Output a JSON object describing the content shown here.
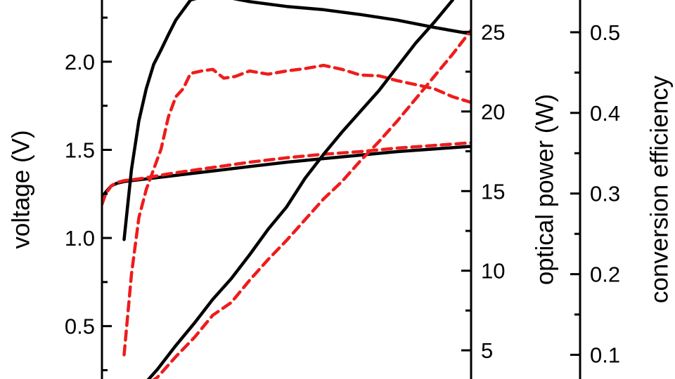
{
  "chart_data": {
    "type": "line",
    "title": "",
    "x_axis": {
      "visible": false
    },
    "axes": {
      "voltage": {
        "label": "voltage (V)",
        "ylim": [
          0.2,
          2.35
        ],
        "ticks": [
          0.5,
          1.0,
          1.5,
          2.0
        ],
        "tick_labels": [
          "0.5",
          "1.0",
          "1.5",
          "2.0"
        ]
      },
      "optical_power": {
        "label": "optical power (W)",
        "ylim": [
          3.2,
          27
        ],
        "ticks": [
          5,
          10,
          15,
          20,
          25
        ],
        "tick_labels": [
          "5",
          "10",
          "15",
          "20",
          "25"
        ]
      },
      "conversion_efficiency": {
        "label": "conversion efficiency",
        "ylim": [
          0.07,
          0.54
        ],
        "ticks": [
          0.1,
          0.2,
          0.3,
          0.4,
          0.5
        ],
        "tick_labels": [
          "0.1",
          "0.2",
          "0.3",
          "0.4",
          "0.5"
        ]
      }
    },
    "xlim": [
      0,
      100
    ],
    "series": [
      {
        "axis": "voltage",
        "color": "#000000",
        "style": "solid",
        "x": [
          0,
          1,
          2.5,
          4,
          6,
          8,
          10,
          20,
          30,
          40,
          50,
          60,
          70,
          80,
          90,
          100
        ],
        "y": [
          1.23,
          1.26,
          1.295,
          1.31,
          1.32,
          1.325,
          1.33,
          1.355,
          1.38,
          1.405,
          1.43,
          1.45,
          1.47,
          1.49,
          1.505,
          1.52
        ]
      },
      {
        "axis": "voltage",
        "color": "#ee1c1c",
        "style": "dashed",
        "x": [
          0,
          1,
          2.5,
          4,
          6,
          8,
          10,
          20,
          30,
          40,
          50,
          60,
          70,
          80,
          90,
          100
        ],
        "y": [
          1.19,
          1.25,
          1.295,
          1.315,
          1.325,
          1.33,
          1.335,
          1.37,
          1.4,
          1.43,
          1.455,
          1.475,
          1.49,
          1.51,
          1.525,
          1.54
        ]
      },
      {
        "axis": "conversion_efficiency",
        "color": "#000000",
        "style": "solid",
        "x": [
          6,
          8,
          10,
          12,
          14,
          16,
          18,
          20,
          24,
          28,
          32,
          40,
          50,
          60,
          70,
          80,
          90,
          100
        ],
        "y": [
          0.243,
          0.33,
          0.39,
          0.43,
          0.46,
          0.478,
          0.497,
          0.515,
          0.54,
          0.545,
          0.545,
          0.538,
          0.532,
          0.528,
          0.522,
          0.515,
          0.506,
          0.498
        ]
      },
      {
        "axis": "conversion_efficiency",
        "color": "#ee1c1c",
        "style": "dashed",
        "x": [
          6,
          8,
          10,
          12,
          14,
          16,
          18,
          20,
          22,
          24,
          27,
          30,
          33,
          36,
          40,
          45,
          50,
          55,
          60,
          65,
          70,
          75,
          80,
          85,
          90,
          95,
          100
        ],
        "y": [
          0.1,
          0.2,
          0.27,
          0.305,
          0.33,
          0.355,
          0.395,
          0.42,
          0.43,
          0.449,
          0.452,
          0.454,
          0.443,
          0.445,
          0.452,
          0.448,
          0.452,
          0.455,
          0.459,
          0.454,
          0.447,
          0.446,
          0.44,
          0.435,
          0.43,
          0.42,
          0.413
        ]
      },
      {
        "axis": "optical_power",
        "color": "#000000",
        "style": "solid",
        "x": [
          10,
          15,
          20,
          25,
          30,
          35,
          40,
          45,
          50,
          55,
          60,
          65,
          70,
          75,
          80,
          85,
          90,
          95
        ],
        "y": [
          2.5,
          3.8,
          5.3,
          6.7,
          8.2,
          9.5,
          11,
          12.6,
          14,
          15.8,
          17.3,
          18.7,
          20,
          21.3,
          22.8,
          24.3,
          25.6,
          27
        ]
      },
      {
        "axis": "optical_power",
        "color": "#ee1c1c",
        "style": "dashed",
        "x": [
          10,
          15,
          20,
          25,
          30,
          35,
          40,
          45,
          50,
          55,
          60,
          65,
          70,
          75,
          80,
          85,
          90,
          95,
          100
        ],
        "y": [
          2.5,
          3.3,
          4.6,
          5.8,
          7.2,
          8.0,
          9.4,
          10.7,
          11.9,
          13.2,
          14.5,
          15.6,
          16.9,
          18.1,
          19.4,
          20.8,
          22.2,
          23.6,
          25.1
        ]
      }
    ]
  }
}
